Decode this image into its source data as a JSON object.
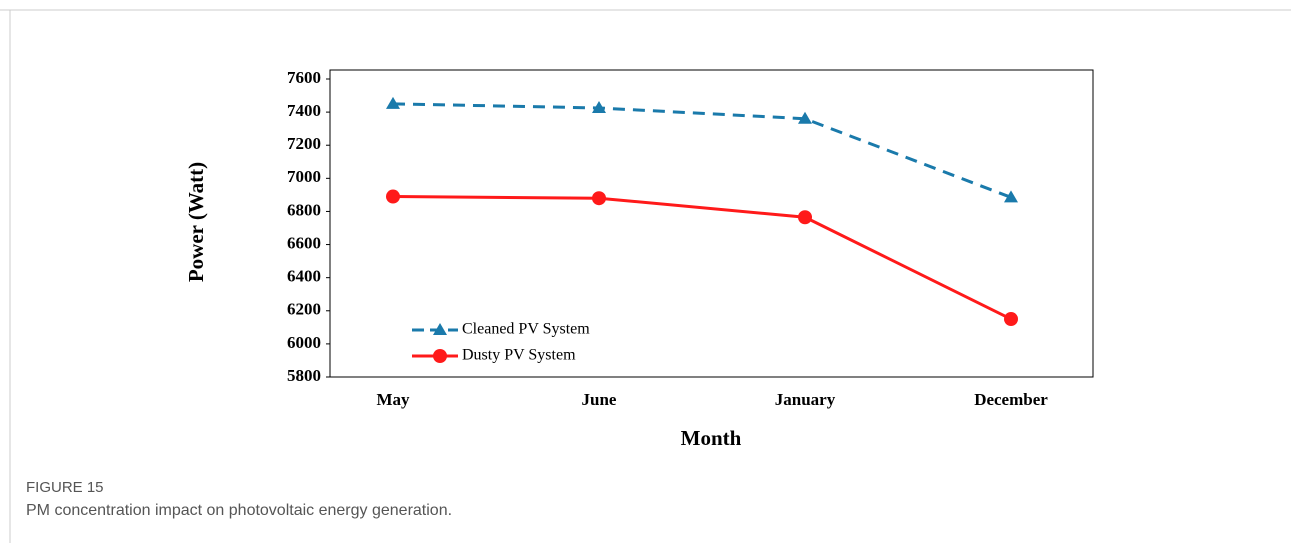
{
  "chart_data": {
    "type": "line",
    "categories": [
      "May",
      "June",
      "January",
      "December"
    ],
    "series": [
      {
        "name": "Cleaned PV System",
        "color": "#1a7aab",
        "dash": true,
        "marker": "triangle",
        "values": [
          7450,
          7425,
          7360,
          6885
        ]
      },
      {
        "name": "Dusty PV System",
        "color": "#ff1a1a",
        "dash": false,
        "marker": "circle",
        "values": [
          6890,
          6880,
          6765,
          6150
        ]
      }
    ],
    "xlabel": "Month",
    "ylabel": "Power (Watt)",
    "ylim": [
      5800,
      7600
    ],
    "yticks": [
      5800,
      6000,
      6200,
      6400,
      6600,
      6800,
      7000,
      7200,
      7400,
      7600
    ],
    "legend": "lower left"
  },
  "caption": {
    "label": "FIGURE 15",
    "text": "PM concentration impact on photovoltaic energy generation."
  }
}
